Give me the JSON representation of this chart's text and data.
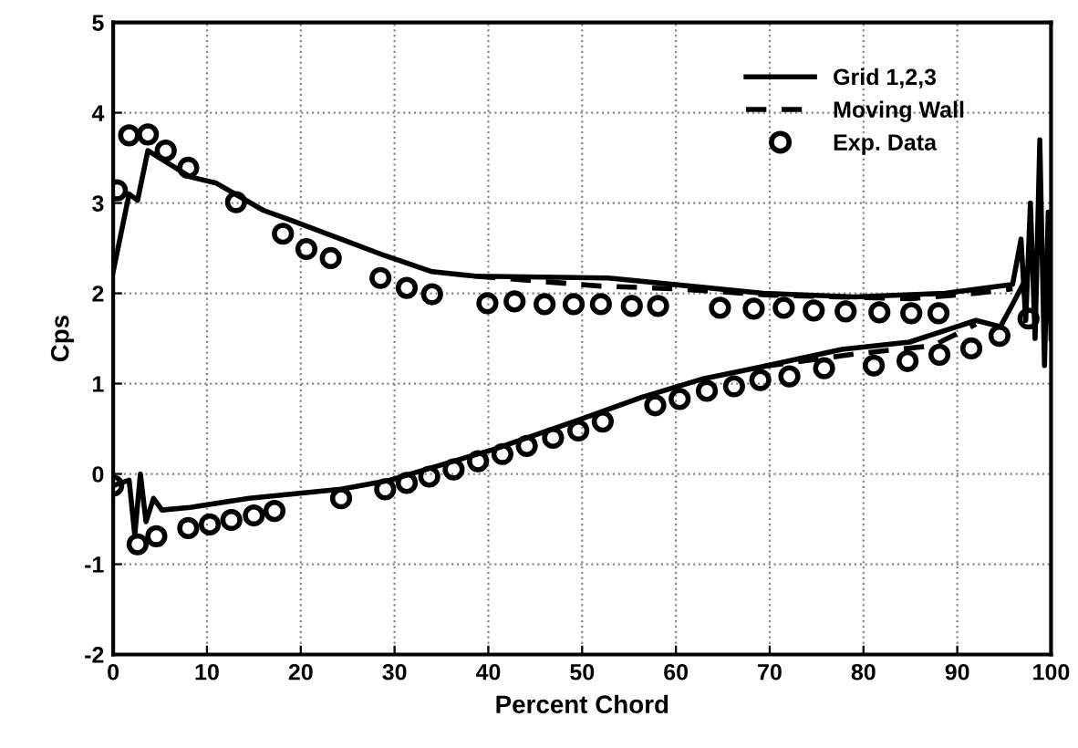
{
  "chart_data": {
    "type": "line",
    "xlabel": "Percent Chord",
    "ylabel": "Cps",
    "xlim": [
      0,
      100
    ],
    "ylim": [
      -2,
      5
    ],
    "xticks": [
      0,
      10,
      20,
      30,
      40,
      50,
      60,
      70,
      80,
      90,
      100
    ],
    "yticks": [
      -2,
      -1,
      0,
      1,
      2,
      3,
      4,
      5
    ],
    "grid": true,
    "legend": "top right",
    "series": [
      {
        "name": "Grid 1,2,3",
        "line_style": "solid",
        "color": "#000000",
        "x": [
          0,
          1.7,
          2.6,
          3.7,
          8.2,
          11,
          16,
          19.2,
          24.3,
          28.9,
          34,
          38.6,
          52.8,
          69.3,
          79,
          88.7,
          95.9,
          96.8,
          97.3,
          97.8,
          98.3,
          98.8,
          99.3,
          99.7,
          100
        ],
        "values": [
          2.24,
          3.1,
          3.03,
          3.58,
          3.29,
          3.22,
          2.92,
          2.8,
          2.6,
          2.42,
          2.24,
          2.19,
          2.17,
          2.0,
          1.96,
          2.0,
          2.1,
          2.6,
          1.7,
          3.0,
          1.5,
          3.7,
          1.2,
          2.9,
          1.5
        ]
      },
      {
        "line_style": "solid",
        "color": "#000000",
        "x": [
          0,
          1.7,
          2.3,
          2.9,
          3.5,
          4.3,
          5.2,
          8.2,
          14.5,
          24.3,
          29.5,
          34,
          40.5,
          49.7,
          56.4,
          62.8,
          69.3,
          77.7,
          84.9,
          92,
          94.6,
          96,
          97
        ],
        "values": [
          -0.13,
          -0.07,
          -0.68,
          0.0,
          -0.53,
          -0.27,
          -0.4,
          -0.37,
          -0.27,
          -0.17,
          -0.07,
          0.07,
          0.27,
          0.6,
          0.85,
          1.05,
          1.19,
          1.38,
          1.46,
          1.7,
          1.63,
          1.9,
          2.1
        ]
      },
      {
        "name": "Moving Wall",
        "line_style": "dashed",
        "color": "#000000",
        "x": [
          38.6,
          52,
          60,
          70,
          85,
          92,
          95.9
        ],
        "values": [
          2.19,
          2.08,
          2.05,
          1.98,
          1.94,
          2.0,
          2.05
        ]
      },
      {
        "line_style": "dashed",
        "color": "#000000",
        "x": [
          69.3,
          79.2,
          87.4,
          92
        ],
        "values": [
          1.19,
          1.33,
          1.42,
          1.66
        ]
      },
      {
        "name": "Exp. Data",
        "type": "scatter",
        "marker": "circle",
        "color": "#000000",
        "x": [
          0.4,
          1.7,
          3.7,
          5.6,
          8.0,
          13.1,
          18.1,
          20.6,
          23.2,
          28.5,
          31.3,
          34.0,
          39.9,
          42.8,
          46,
          49.1,
          52.0,
          55.3,
          58.1,
          64.7,
          68.3,
          71.5,
          74.7,
          78.1,
          81.7,
          85.1,
          88,
          97.6,
          0,
          2.6,
          4.6,
          8,
          10.3,
          12.6,
          15,
          17.2,
          24.3,
          29,
          31.3,
          33.7,
          36.3,
          38.9,
          41.5,
          44.1,
          46.9,
          49.6,
          52.2,
          57.8,
          60.4,
          63.3,
          66.2,
          69.0,
          72.1,
          75.8,
          81.1,
          84.7,
          88.1,
          91.5,
          94.5
        ],
        "values": [
          3.14,
          3.75,
          3.76,
          3.58,
          3.39,
          3.01,
          2.66,
          2.49,
          2.39,
          2.17,
          2.06,
          1.99,
          1.89,
          1.91,
          1.88,
          1.88,
          1.88,
          1.86,
          1.86,
          1.84,
          1.83,
          1.84,
          1.81,
          1.8,
          1.79,
          1.78,
          1.78,
          1.72,
          -0.13,
          -0.78,
          -0.69,
          -0.6,
          -0.56,
          -0.51,
          -0.46,
          -0.41,
          -0.27,
          -0.17,
          -0.1,
          -0.03,
          0.05,
          0.14,
          0.22,
          0.31,
          0.4,
          0.48,
          0.58,
          0.76,
          0.83,
          0.92,
          0.97,
          1.04,
          1.08,
          1.17,
          1.2,
          1.25,
          1.32,
          1.39,
          1.53
        ]
      }
    ]
  }
}
